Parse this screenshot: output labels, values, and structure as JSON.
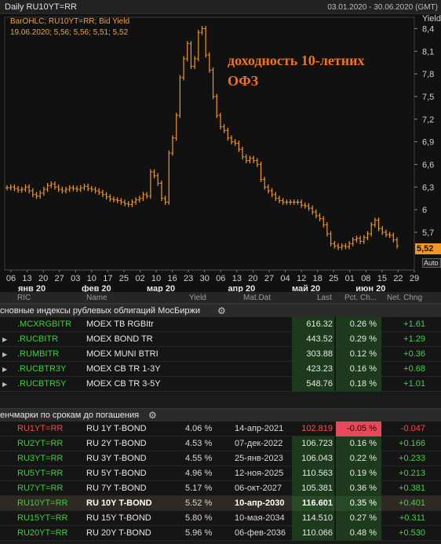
{
  "chart": {
    "title": "Daily RU10YT=RR",
    "date_range": "03.01.2020 - 30.06.2020 (GMT)",
    "legend_line1": "BarOHLC; RU10YT=RR; Bid Yield",
    "legend_line2": "19.06.2020; 5,56; 5,56; 5,51; 5,52",
    "annotation_line1": "доходность 10-летних",
    "annotation_line2": "ОФЗ",
    "yaxis_title": "Yield",
    "last_value": "5,52",
    "auto_label": "Auto",
    "accent_color": "#f29624",
    "annotation_color": "#f07320"
  },
  "chart_data": {
    "type": "line",
    "title": "",
    "ylabel": "Yield",
    "ylim": [
      5.2,
      8.55
    ],
    "yticks": [
      "8,4",
      "8,1",
      "7,8",
      "7,5",
      "7,2",
      "6,9",
      "6,6",
      "6,3",
      "6",
      "5,7",
      "5,52"
    ],
    "ytick_values": [
      8.4,
      8.1,
      7.8,
      7.5,
      7.2,
      6.9,
      6.6,
      6.3,
      6.0,
      5.7
    ],
    "xticks": [
      "06",
      "13",
      "20",
      "27",
      "03",
      "10",
      "17",
      "25",
      "02",
      "10",
      "16",
      "23",
      "30",
      "06",
      "13",
      "20",
      "27",
      "04",
      "12",
      "18",
      "25",
      "01",
      "08",
      "15",
      "22",
      "29"
    ],
    "months": [
      "янв 20",
      "фев 20",
      "мар 20",
      "апр 20",
      "май 20",
      "июн 20"
    ],
    "series": [
      {
        "name": "",
        "values": [
          6.29,
          6.3,
          6.28,
          6.26,
          6.27,
          6.3,
          6.25,
          6.2,
          6.18,
          6.22,
          6.27,
          6.32,
          6.34,
          6.3,
          6.27,
          6.25,
          6.27,
          6.29,
          6.28,
          6.27,
          6.29,
          6.31,
          6.28,
          6.27,
          6.25,
          6.23,
          6.2,
          6.17,
          6.14,
          6.13,
          6.12,
          6.1,
          6.08,
          6.07,
          6.1,
          6.13,
          6.15,
          6.2,
          6.18,
          6.5,
          6.45,
          6.35,
          6.15,
          6.1,
          6.75,
          6.95,
          7.25,
          7.75,
          8.0,
          8.2,
          7.9,
          8.0,
          8.35,
          8.4,
          8.05,
          7.85,
          7.5,
          7.25,
          7.1,
          7.05,
          6.95,
          6.9,
          6.88,
          6.8,
          6.7,
          6.65,
          6.68,
          6.65,
          6.6,
          6.4,
          6.3,
          6.25,
          6.2,
          6.15,
          6.12,
          6.1,
          6.1,
          6.1,
          6.1,
          6.1,
          6.06,
          6.05,
          6.02,
          5.97,
          5.92,
          5.88,
          5.8,
          5.68,
          5.55,
          5.52,
          5.5,
          5.52,
          5.51,
          5.55,
          5.6,
          5.62,
          5.58,
          5.63,
          5.68,
          5.8,
          5.86,
          5.75,
          5.7,
          5.67,
          5.66,
          5.6,
          5.52
        ]
      }
    ]
  },
  "grid": {
    "headers": {
      "ric": "RIC",
      "name": "Name",
      "yield": "Yield",
      "mat": "Mat.Dat",
      "last": "Last",
      "pct": "Pct. Ch...",
      "net": "Net. Chng"
    },
    "group1": {
      "title": "сновные индексы рублевых облигаций МосБиржи",
      "rows": [
        {
          "ric": ".MCXRGBITR",
          "name": "MOEX TB RGBItr",
          "last": "616.32",
          "pct": "0.26 %",
          "net": "+1.61"
        },
        {
          "ric": ".RUCBITR",
          "name": "MOEX BOND TR",
          "last": "443.52",
          "pct": "0.29 %",
          "net": "+1.29"
        },
        {
          "ric": ".RUMBITR",
          "name": "MOEX MUNI BTRI",
          "last": "303.88",
          "pct": "0.12 %",
          "net": "+0.36"
        },
        {
          "ric": ".RUCBTR3Y",
          "name": "MOEX CB TR 1-3Y",
          "last": "423.23",
          "pct": "0.16 %",
          "net": "+0.68"
        },
        {
          "ric": ".RUCBTR5Y",
          "name": "MOEX CB TR 3-5Y",
          "last": "548.76",
          "pct": "0.18 %",
          "net": "+1.01"
        }
      ]
    },
    "group2": {
      "title": "енчмарки по срокам до погашения",
      "rows": [
        {
          "ric": "RU1YT=RR",
          "name": "RU 1Y T-BOND",
          "yield": "4.06 %",
          "mat": "14-апр-2021",
          "last": "102.819",
          "pct": "-0.05 %",
          "net": "-0.047"
        },
        {
          "ric": "RU2YT=RR",
          "name": "RU 2Y T-BOND",
          "yield": "4.53 %",
          "mat": "07-дек-2022",
          "last": "106.723",
          "pct": "0.16 %",
          "net": "+0.166"
        },
        {
          "ric": "RU3YT=RR",
          "name": "RU 3Y T-BOND",
          "yield": "4.55 %",
          "mat": "25-янв-2023",
          "last": "106.043",
          "pct": "0.22 %",
          "net": "+0.233"
        },
        {
          "ric": "RU5YT=RR",
          "name": "RU 5Y T-BOND",
          "yield": "4.96 %",
          "mat": "12-ноя-2025",
          "last": "110.563",
          "pct": "0.19 %",
          "net": "+0.213"
        },
        {
          "ric": "RU7YT=RR",
          "name": "RU 7Y T-BOND",
          "yield": "5.17 %",
          "mat": "06-окт-2027",
          "last": "105.381",
          "pct": "0.36 %",
          "net": "+0.381"
        },
        {
          "ric": "RU10YT=RR",
          "name": "RU 10Y T-BOND",
          "yield": "5.52 %",
          "mat": "10-апр-2030",
          "last": "116.601",
          "pct": "0.35 %",
          "net": "+0.401"
        },
        {
          "ric": "RU15YT=RR",
          "name": "RU 15Y T-BOND",
          "yield": "5.80 %",
          "mat": "10-мая-2034",
          "last": "114.510",
          "pct": "0.27 %",
          "net": "+0.311"
        },
        {
          "ric": "RU20YT=RR",
          "name": "RU 20Y T-BOND",
          "yield": "5.96 %",
          "mat": "06-фев-2036",
          "last": "110.066",
          "pct": "0.48 %",
          "net": "+0.530"
        }
      ]
    }
  }
}
